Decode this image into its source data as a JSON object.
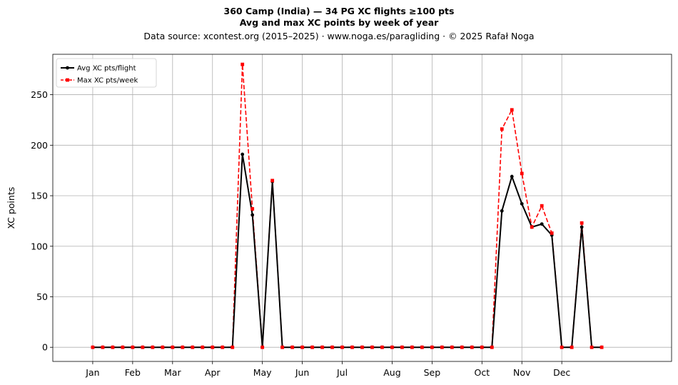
{
  "chart_data": {
    "type": "line",
    "title": "360 Camp (India)  —  34 PG XC flights ≥100 pts",
    "subtitle": "Avg and max XC points by week of year",
    "source_line": "Data source: xcontest.org (2015–2025)  ·  www.noga.es/paragliding  ·  © 2025 Rafał Noga",
    "xlabel": "",
    "ylabel": "XC points",
    "ylim": [
      -14,
      290
    ],
    "xlim": [
      -3,
      59
    ],
    "grid": true,
    "legend_position": "top-left",
    "xticks": [
      {
        "week": 1,
        "label": "Jan"
      },
      {
        "week": 5,
        "label": "Feb"
      },
      {
        "week": 9,
        "label": "Mar"
      },
      {
        "week": 13,
        "label": "Apr"
      },
      {
        "week": 18,
        "label": "May"
      },
      {
        "week": 22,
        "label": "Jun"
      },
      {
        "week": 26,
        "label": "Jul"
      },
      {
        "week": 31,
        "label": "Aug"
      },
      {
        "week": 35,
        "label": "Sep"
      },
      {
        "week": 40,
        "label": "Oct"
      },
      {
        "week": 44,
        "label": "Nov"
      },
      {
        "week": 48,
        "label": "Dec"
      }
    ],
    "yticks": [
      0,
      50,
      100,
      150,
      200,
      250
    ],
    "x": [
      1,
      2,
      3,
      4,
      5,
      6,
      7,
      8,
      9,
      10,
      11,
      12,
      13,
      14,
      15,
      16,
      17,
      18,
      19,
      20,
      21,
      22,
      23,
      24,
      25,
      26,
      27,
      28,
      29,
      30,
      31,
      32,
      33,
      34,
      35,
      36,
      37,
      38,
      39,
      40,
      41,
      42,
      43,
      44,
      45,
      46,
      47,
      48,
      49,
      50,
      51,
      52
    ],
    "series": [
      {
        "name": "Avg XC pts/flight",
        "color": "#000000",
        "style": "solid",
        "marker": "circle",
        "values": [
          0,
          0,
          0,
          0,
          0,
          0,
          0,
          0,
          0,
          0,
          0,
          0,
          0,
          0,
          0,
          191,
          131,
          0,
          164,
          0,
          0,
          0,
          0,
          0,
          0,
          0,
          0,
          0,
          0,
          0,
          0,
          0,
          0,
          0,
          0,
          0,
          0,
          0,
          0,
          0,
          0,
          135,
          169,
          142,
          119,
          122,
          111,
          0,
          0,
          119,
          0,
          0
        ]
      },
      {
        "name": "Max XC pts/week",
        "color": "#ff0000",
        "style": "dashed",
        "marker": "square",
        "values": [
          0,
          0,
          0,
          0,
          0,
          0,
          0,
          0,
          0,
          0,
          0,
          0,
          0,
          0,
          0,
          280,
          137,
          0,
          165,
          0,
          0,
          0,
          0,
          0,
          0,
          0,
          0,
          0,
          0,
          0,
          0,
          0,
          0,
          0,
          0,
          0,
          0,
          0,
          0,
          0,
          0,
          216,
          235,
          172,
          119,
          140,
          113,
          0,
          0,
          123,
          0,
          0
        ]
      }
    ]
  }
}
